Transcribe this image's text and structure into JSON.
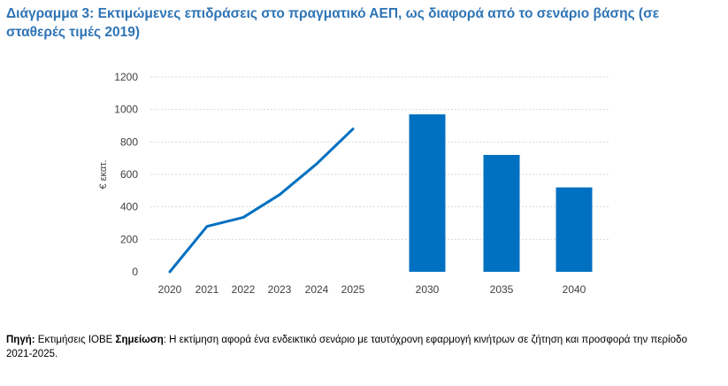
{
  "title": "Διάγραμμα 3: Εκτιμώμενες επιδράσεις στο πραγματικό ΑΕΠ, ως διαφορά από το σενάριο βάσης (σε σταθερές τιμές 2019)",
  "chart_data": {
    "type": "line+bar",
    "ylabel": "€ εκατ.",
    "ylim": [
      0,
      1200
    ],
    "yticks": [
      "0",
      "200",
      "400",
      "600",
      "800",
      "1000",
      "1200"
    ],
    "grid": true,
    "legend": "none",
    "color": "#0070c0",
    "line": {
      "x": [
        "2020",
        "2021",
        "2022",
        "2023",
        "2024",
        "2025"
      ],
      "values": [
        0,
        280,
        335,
        475,
        665,
        880
      ]
    },
    "bars": {
      "x": [
        "2030",
        "2035",
        "2040"
      ],
      "values": [
        970,
        720,
        520
      ]
    }
  },
  "footnote": {
    "source_label": "Πηγή:",
    "source_text": "Εκτιμήσεις ΙΟΒΕ",
    "note_label": "Σημείωση",
    "note_text": ": Η εκτίμηση αφορά ένα ενδεικτικό σενάριο με ταυτόχρονη εφαρμογή κινήτρων σε ζήτηση και προσφορά την περίοδο 2021-2025."
  }
}
